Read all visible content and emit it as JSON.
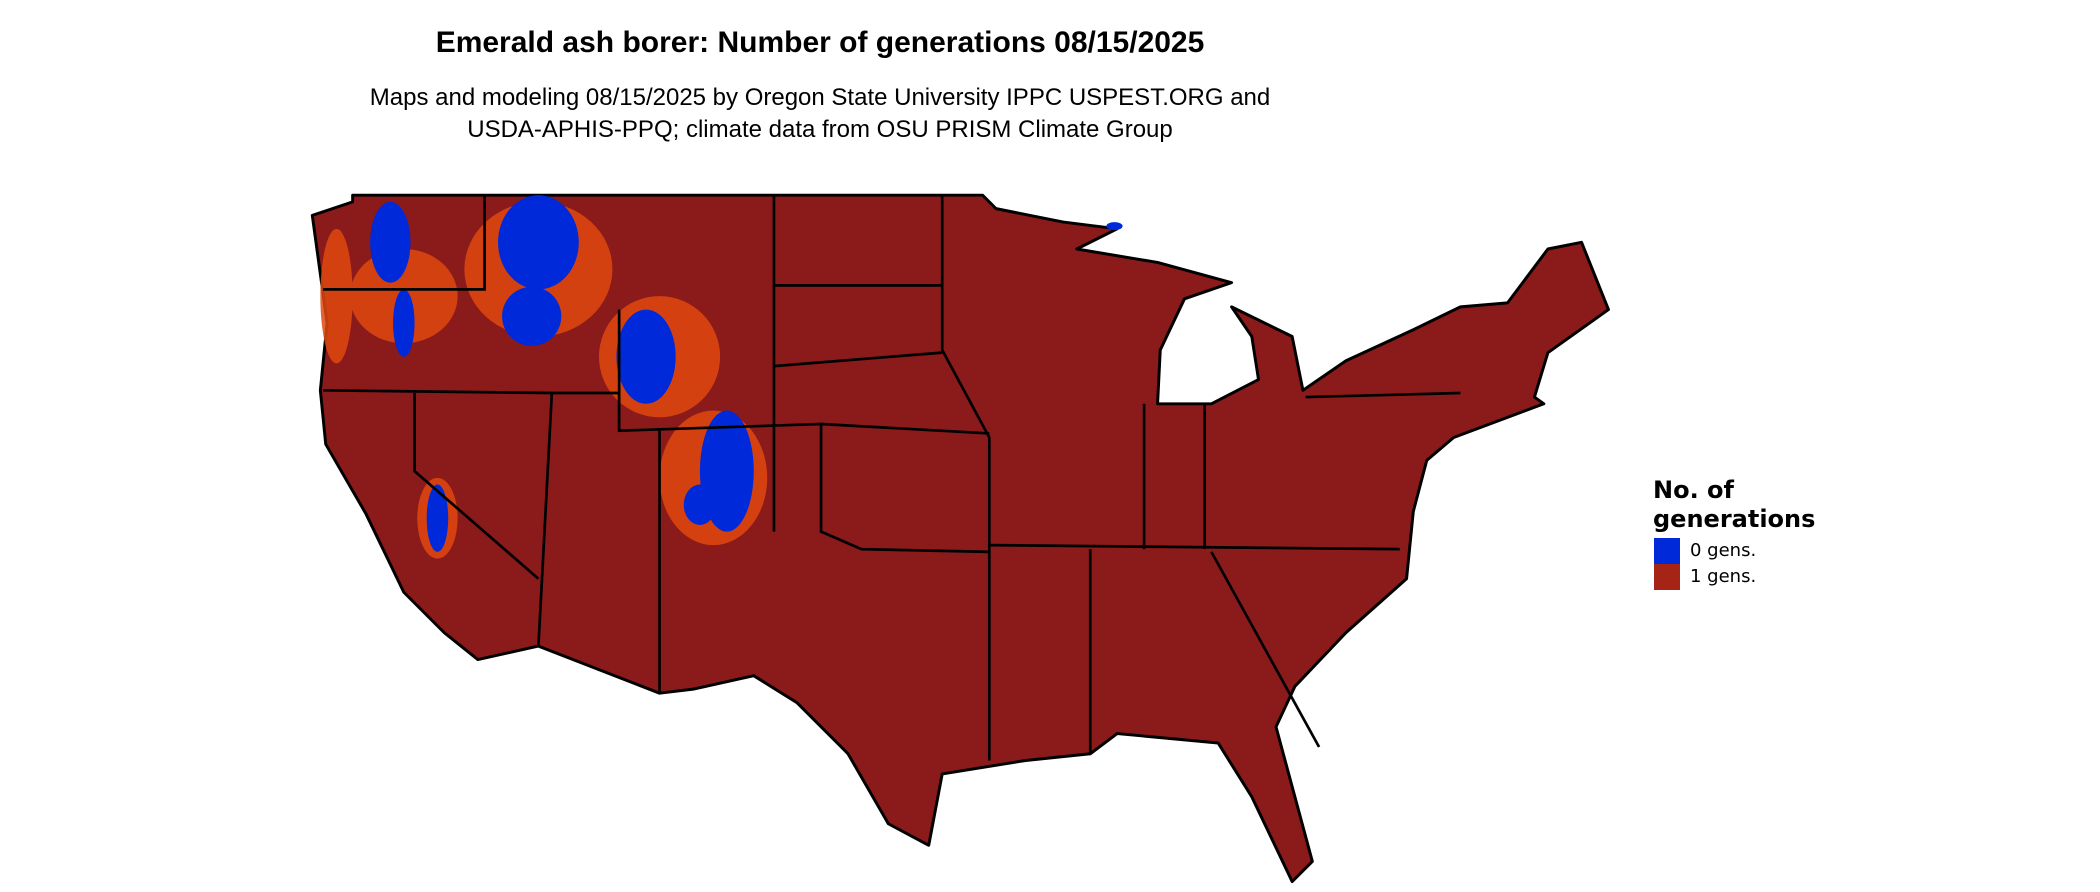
{
  "title": "Emerald ash borer: Number of generations 08/15/2025",
  "subtitle_line1": "Maps and modeling 08/15/2025 by Oregon State University IPPC USPEST.ORG and",
  "subtitle_line2": "USDA-APHIS-PPQ; climate data from OSU PRISM Climate Group",
  "legend": {
    "title_line1": "No. of",
    "title_line2": "generations",
    "items": [
      {
        "label": "0 gens.",
        "color": "#0029D9"
      },
      {
        "label": "1 gens.",
        "color": "#A52416"
      }
    ]
  },
  "colors": {
    "land": "#8B1A1A",
    "fringe": "#E0480F",
    "zero": "#0029D9",
    "border": "#000000"
  }
}
